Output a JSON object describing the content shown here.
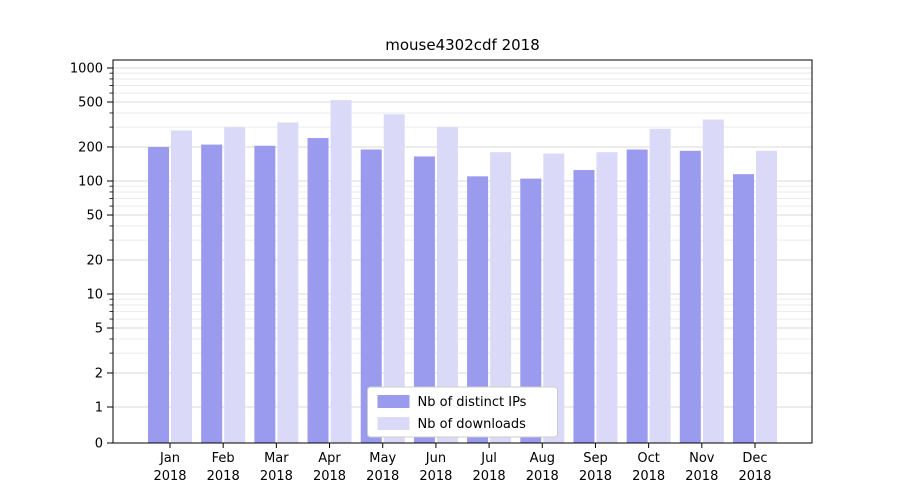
{
  "chart_data": {
    "type": "bar",
    "title": "mouse4302cdf 2018",
    "year": "2018",
    "categories": [
      "Jan",
      "Feb",
      "Mar",
      "Apr",
      "May",
      "Jun",
      "Jul",
      "Aug",
      "Sep",
      "Oct",
      "Nov",
      "Dec"
    ],
    "series": [
      {
        "name": "Nb of distinct IPs",
        "color": "#9a9aee",
        "values": [
          200,
          210,
          205,
          240,
          190,
          165,
          110,
          105,
          125,
          190,
          185,
          115
        ]
      },
      {
        "name": "Nb of downloads",
        "color": "#dadaf8",
        "values": [
          280,
          300,
          330,
          520,
          390,
          300,
          180,
          175,
          180,
          290,
          350,
          185
        ]
      }
    ],
    "yscale": "symlog",
    "yticks": [
      0,
      1,
      2,
      5,
      10,
      20,
      50,
      100,
      200,
      500,
      1000
    ],
    "ylim": [
      0,
      1200
    ],
    "xlabel": "",
    "ylabel": "",
    "grid": true,
    "legend_position": "lower center"
  },
  "colors": {
    "background": "#ffffff",
    "grid_major": "#dadada",
    "grid_minor": "#ebebeb",
    "axis": "#000000",
    "legend_border": "#cccccc",
    "legend_background": "#ffffff",
    "text": "#000000"
  }
}
